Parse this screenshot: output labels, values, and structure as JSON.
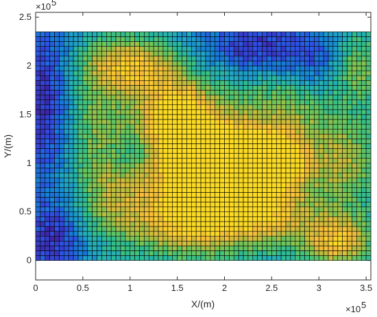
{
  "chart_data": {
    "type": "heatmap",
    "title": "",
    "xlabel": "X/(m)",
    "ylabel": "Y/(m)",
    "xlim": [
      0,
      355000
    ],
    "ylim": [
      -20000,
      255000
    ],
    "x_ticks": [
      0,
      50000,
      100000,
      150000,
      200000,
      250000,
      300000,
      350000
    ],
    "x_tick_labels": [
      "0",
      "0.5",
      "1",
      "1.5",
      "2",
      "2.5",
      "3",
      "3.5"
    ],
    "y_ticks": [
      0,
      50000,
      100000,
      150000,
      200000,
      250000
    ],
    "y_tick_labels": [
      "0",
      "0.5",
      "1",
      "1.5",
      "2",
      "2.5"
    ],
    "x_multiplier": "×10",
    "y_multiplier": "×10",
    "multiplier_exponent": "5",
    "grid_extent": {
      "x": [
        0,
        355000
      ],
      "y": [
        0,
        235000
      ]
    },
    "grid_cells": {
      "nx": 71,
      "ny": 47
    },
    "colormap": "parula",
    "colors": [
      "#3e26a8",
      "#2f4fe5",
      "#1481d6",
      "#22a9c2",
      "#2fbe8e",
      "#6dc65a",
      "#bebc3d",
      "#f6bc3b",
      "#fada24"
    ],
    "hotspots": [
      {
        "x": 190000,
        "y": 100000,
        "sx": 50000,
        "sy": 30000,
        "amp": 1.0
      },
      {
        "x": 150000,
        "y": 150000,
        "sx": 30000,
        "sy": 28000,
        "amp": 0.65
      },
      {
        "x": 100000,
        "y": 200000,
        "sx": 35000,
        "sy": 20000,
        "amp": 0.55
      },
      {
        "x": 255000,
        "y": 100000,
        "sx": 25000,
        "sy": 20000,
        "amp": 0.6
      },
      {
        "x": 240000,
        "y": 45000,
        "sx": 40000,
        "sy": 22000,
        "amp": 0.5
      },
      {
        "x": 160000,
        "y": 40000,
        "sx": 40000,
        "sy": 25000,
        "amp": 0.55
      },
      {
        "x": 320000,
        "y": 20000,
        "sx": 25000,
        "sy": 20000,
        "amp": 0.55
      },
      {
        "x": 60000,
        "y": 140000,
        "sx": 25000,
        "sy": 40000,
        "amp": 0.3
      },
      {
        "x": 270000,
        "y": 160000,
        "sx": 40000,
        "sy": 30000,
        "amp": 0.3
      },
      {
        "x": 340000,
        "y": 200000,
        "sx": 20000,
        "sy": 25000,
        "amp": 0.35
      },
      {
        "x": 330000,
        "y": 100000,
        "sx": 25000,
        "sy": 30000,
        "amp": 0.35
      },
      {
        "x": 80000,
        "y": 60000,
        "sx": 30000,
        "sy": 30000,
        "amp": 0.3
      }
    ],
    "lows": [
      {
        "x": 10000,
        "y": 160000,
        "sx": 25000,
        "sy": 60000,
        "amp": 0.35
      },
      {
        "x": 20000,
        "y": 20000,
        "sx": 25000,
        "sy": 30000,
        "amp": 0.3
      },
      {
        "x": 230000,
        "y": 220000,
        "sx": 40000,
        "sy": 20000,
        "amp": 0.3
      },
      {
        "x": 300000,
        "y": 200000,
        "sx": 30000,
        "sy": 25000,
        "amp": 0.25
      },
      {
        "x": 110000,
        "y": 110000,
        "sx": 20000,
        "sy": 15000,
        "amp": 0.2
      }
    ],
    "baseline": 0.35
  }
}
